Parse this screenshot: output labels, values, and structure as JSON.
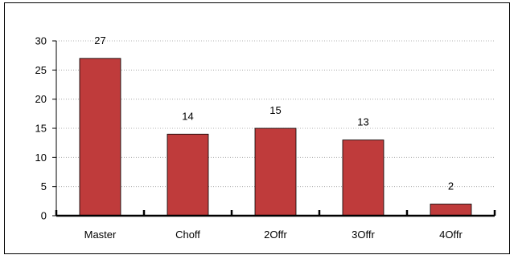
{
  "chart_data": {
    "type": "bar",
    "categories": [
      "Master",
      "Choff",
      "2Offr",
      "3Offr",
      "4Offr"
    ],
    "values": [
      27,
      14,
      15,
      13,
      2
    ],
    "title": "",
    "xlabel": "",
    "ylabel": "",
    "ylim": [
      0,
      30
    ],
    "yticks": [
      0,
      5,
      10,
      15,
      20,
      25,
      30
    ],
    "grid": true,
    "legend": "none",
    "bar_color": "#bf3b3b",
    "bar_edge_color": "#000000"
  }
}
